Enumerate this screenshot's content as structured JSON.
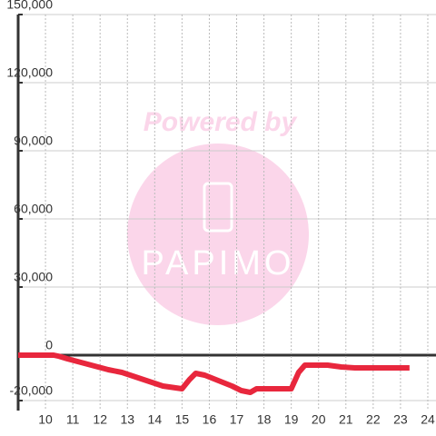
{
  "chart_data": {
    "type": "line",
    "x": [
      9.0,
      10.3,
      10.5,
      10.8,
      11.3,
      11.8,
      12.3,
      12.8,
      13.3,
      13.8,
      14.3,
      15.0,
      15.27,
      15.5,
      15.83,
      16.33,
      16.83,
      17.17,
      17.5,
      17.73,
      18.33,
      19.0,
      19.27,
      19.5,
      20.33,
      20.83,
      21.33,
      23.33
    ],
    "series": [
      {
        "color": "#e8273d",
        "values": [
          0,
          0,
          -500,
          -1600,
          -3200,
          -4800,
          -6400,
          -7600,
          -9600,
          -11600,
          -13600,
          -14800,
          -10800,
          -8000,
          -8800,
          -11200,
          -13600,
          -15600,
          -16400,
          -14800,
          -14800,
          -14800,
          -7600,
          -4400,
          -4400,
          -5200,
          -5600,
          -5600
        ]
      }
    ],
    "xlim": [
      9,
      24.3
    ],
    "xticks": [
      10,
      11,
      12,
      13,
      14,
      15,
      16,
      17,
      18,
      19,
      20,
      21,
      22,
      23,
      24
    ],
    "ylim": [
      -20000,
      150000
    ],
    "yticks": [
      {
        "value": -20000,
        "label": "-20,000"
      },
      0,
      {
        "value": 30000,
        "label": "30,000"
      },
      {
        "value": 60000,
        "label": "60,000"
      },
      {
        "value": 90000,
        "label": "90,000"
      },
      {
        "value": 120000,
        "label": "120,000"
      },
      {
        "value": 150000,
        "label": "150,000"
      }
    ],
    "grid": true
  },
  "watermark": {
    "text": "Powered by",
    "logo": "PAPIMO"
  }
}
